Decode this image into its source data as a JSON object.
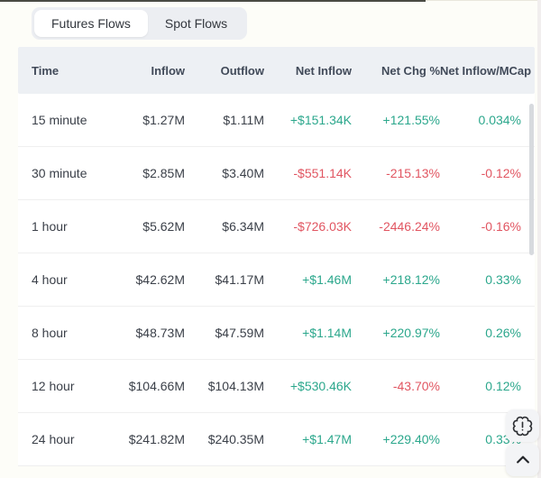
{
  "tabs": [
    {
      "label": "Futures Flows",
      "active": true
    },
    {
      "label": "Spot Flows",
      "active": false
    }
  ],
  "table": {
    "columns": [
      "Time",
      "Inflow",
      "Outflow",
      "Net Inflow",
      "Net Chg %",
      "Net Inflow/MCap"
    ],
    "rows": [
      {
        "time": "15 minute",
        "inflow": "$1.27M",
        "outflow": "$1.11M",
        "net_inflow": "+$151.34K",
        "net_chg": "+121.55%",
        "net_inflow_mcap": "0.034%"
      },
      {
        "time": "30 minute",
        "inflow": "$2.85M",
        "outflow": "$3.40M",
        "net_inflow": "-$551.14K",
        "net_chg": "-215.13%",
        "net_inflow_mcap": "-0.12%"
      },
      {
        "time": "1 hour",
        "inflow": "$5.62M",
        "outflow": "$6.34M",
        "net_inflow": "-$726.03K",
        "net_chg": "-2446.24%",
        "net_inflow_mcap": "-0.16%"
      },
      {
        "time": "4 hour",
        "inflow": "$42.62M",
        "outflow": "$41.17M",
        "net_inflow": "+$1.46M",
        "net_chg": "+218.12%",
        "net_inflow_mcap": "0.33%"
      },
      {
        "time": "8 hour",
        "inflow": "$48.73M",
        "outflow": "$47.59M",
        "net_inflow": "+$1.14M",
        "net_chg": "+220.97%",
        "net_inflow_mcap": "0.26%"
      },
      {
        "time": "12 hour",
        "inflow": "$104.66M",
        "outflow": "$104.13M",
        "net_inflow": "+$530.46K",
        "net_chg": "-43.70%",
        "net_inflow_mcap": "0.12%"
      },
      {
        "time": "24 hour",
        "inflow": "$241.82M",
        "outflow": "$240.35M",
        "net_inflow": "+$1.47M",
        "net_chg": "+229.40%",
        "net_inflow_mcap": "0.33%"
      }
    ]
  },
  "colors": {
    "positive": "#2BA78C",
    "negative": "#E15561"
  },
  "icons": {
    "floating_alert": "alert-badge-icon",
    "floating_scroll_top": "chevron-up-icon"
  }
}
